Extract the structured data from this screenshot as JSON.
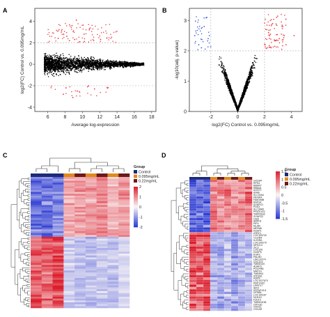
{
  "chart_data": [
    {
      "panel": "A",
      "type": "scatter",
      "title": "",
      "xlabel": "Average log-expression",
      "ylabel": "log2(FC) Control vs. 0.095mg/mL",
      "xlim": [
        4.5,
        18.5
      ],
      "ylim": [
        -4.4,
        5.2
      ],
      "xticks": [
        "6",
        "8",
        "10",
        "12",
        "14",
        "16",
        "18"
      ],
      "yticks": [
        "-4",
        "-2",
        "0",
        "2",
        "4"
      ],
      "threshold_lines_y": [
        -2,
        2
      ],
      "colors": {
        "not_significant": "#000000",
        "significant": "#e8363e"
      },
      "points": [
        {
          "x": 8.2,
          "y": 2.6,
          "sig": true
        },
        {
          "x": 9.1,
          "y": 2.3,
          "sig": true
        },
        {
          "x": 10.2,
          "y": 2.8,
          "sig": true
        },
        {
          "x": 7.6,
          "y": 3.1,
          "sig": true
        },
        {
          "x": 11.3,
          "y": 2.2,
          "sig": true
        },
        {
          "x": 8.8,
          "y": 3.6,
          "sig": true
        },
        {
          "x": 9.7,
          "y": 2.1,
          "sig": true
        },
        {
          "x": 10.8,
          "y": 3.2,
          "sig": true
        },
        {
          "x": 7.2,
          "y": 2.4,
          "sig": true
        },
        {
          "x": 8.5,
          "y": 2.2,
          "sig": true
        },
        {
          "x": 12.1,
          "y": 2.3,
          "sig": true
        },
        {
          "x": 9.3,
          "y": 4.1,
          "sig": true
        },
        {
          "x": 8.1,
          "y": -2.2,
          "sig": true
        },
        {
          "x": 9.4,
          "y": -2.5,
          "sig": true
        },
        {
          "x": 10.6,
          "y": -2.1,
          "sig": true
        },
        {
          "x": 7.8,
          "y": -2.8,
          "sig": true
        },
        {
          "x": 11.4,
          "y": -2.3,
          "sig": true
        },
        {
          "x": 8.9,
          "y": -3.1,
          "sig": true
        }
      ]
    },
    {
      "panel": "B",
      "type": "scatter",
      "title": "",
      "xlabel": "log2(FC) Control vs. 0.095mg/mL",
      "ylabel": "-log10(adj. p-value)",
      "xlim": [
        -3.6,
        4.8
      ],
      "ylim": [
        0,
        3.4
      ],
      "xticks": [
        "-2",
        "0",
        "2",
        "4"
      ],
      "yticks": [
        "0",
        "1",
        "2",
        "3"
      ],
      "threshold_lines_x": [
        -2,
        2
      ],
      "threshold_lines_y": [
        2
      ],
      "colors": {
        "not_significant": "#000000",
        "up": "#e8363e",
        "down": "#3b5bdb"
      },
      "points": [
        {
          "x": 2.3,
          "y": 2.6,
          "group": "up"
        },
        {
          "x": 2.6,
          "y": 2.9,
          "group": "up"
        },
        {
          "x": 3.1,
          "y": 2.4,
          "group": "up"
        },
        {
          "x": 2.9,
          "y": 3.1,
          "group": "up"
        },
        {
          "x": 3.6,
          "y": 2.2,
          "group": "up"
        },
        {
          "x": 4.2,
          "y": 2.5,
          "group": "up"
        },
        {
          "x": 2.2,
          "y": 2.1,
          "group": "up"
        },
        {
          "x": 3.3,
          "y": 2.8,
          "group": "up"
        },
        {
          "x": -2.2,
          "y": 2.4,
          "group": "down"
        },
        {
          "x": -2.5,
          "y": 2.8,
          "group": "down"
        },
        {
          "x": -2.9,
          "y": 2.2,
          "group": "down"
        },
        {
          "x": -2.3,
          "y": 3.1,
          "group": "down"
        },
        {
          "x": -3.2,
          "y": 2.5,
          "group": "down"
        },
        {
          "x": -2.7,
          "y": 2.1,
          "group": "down"
        }
      ]
    },
    {
      "panel": "C",
      "type": "heatmap",
      "title": "",
      "legend_title": "Group",
      "groups": [
        {
          "name": "Control",
          "color": "#1c2a7a"
        },
        {
          "name": "0.095mg/mL",
          "color": "#e08a1e"
        },
        {
          "name": "0.22mg/mL",
          "color": "#6b1a1a"
        }
      ],
      "column_groups": [
        "Control",
        "Control",
        "Control",
        "0.095mg/mL",
        "0.22mg/mL",
        "0.095mg/mL",
        "0.22mg/mL",
        "0.095mg/mL",
        "0.22mg/mL"
      ],
      "colorbar_ticks": [
        "2",
        "1",
        "0",
        "-1",
        "-2"
      ],
      "value_range": [
        -2,
        2
      ],
      "blocks": [
        {
          "rows": 32,
          "values": [
            -1.5,
            -1.4,
            -1.3,
            0.8,
            1.0,
            0.9,
            1.1,
            0.7,
            1.0
          ]
        },
        {
          "rows": 38,
          "values": [
            1.6,
            1.5,
            1.7,
            -0.5,
            -0.6,
            -0.7,
            -0.5,
            -0.6,
            -0.4
          ]
        }
      ]
    },
    {
      "panel": "D",
      "type": "heatmap",
      "title": "",
      "legend_title": "Group",
      "groups": [
        {
          "name": "Control",
          "color": "#1c2a7a"
        },
        {
          "name": "0.095mg/mL",
          "color": "#e08a1e"
        },
        {
          "name": "0.22mg/mL",
          "color": "#6b1a1a"
        }
      ],
      "column_groups": [
        "Control",
        "Control",
        "Control",
        "0.095mg/mL",
        "0.22mg/mL",
        "0.095mg/mL",
        "0.22mg/mL",
        "0.095mg/mL",
        "0.22mg/mL"
      ],
      "colorbar_ticks": [
        "1.5",
        "1",
        "0.5",
        "0",
        "-0.5",
        "-1",
        "-1.5"
      ],
      "value_range": [
        -1.5,
        1.5
      ],
      "row_labels": [
        "GOLM4",
        "RPS4",
        "RBM47",
        "RBM41",
        "AGGT1",
        "AS48",
        "SLC30A4",
        "FBXW4",
        "FAM198B",
        "RAP2A",
        "SYNPO1",
        "PDK4",
        "SLC38A5",
        "PRICKLE2",
        "TMPRSS6",
        "SYNPO2",
        "OGN",
        "ARPH1",
        "PIP4",
        "NLAM",
        "NEFM8",
        "DUSP1",
        "ATRC1",
        "LOC105729",
        "C1orf64",
        "IL2ORA",
        "LOC100279",
        "NFE2L3",
        "ZIC3",
        "LOC105",
        "DUSP5",
        "EGR3",
        "PALMD",
        "LINC10274",
        "CDC2L5",
        "TMEM100",
        "AGAP3",
        "PDGFRB",
        "MAP1S",
        "TMEM44",
        "ATP2B1",
        "ASPN",
        "LOC1027670",
        "RAP1GA2",
        "LRRC17",
        "IER3",
        "KRTAP19-8",
        "UPSB6",
        "LOC105167",
        "NCEA3",
        "FZD10",
        "TMEM151B",
        "CRYGD",
        "CDH12",
        "CSCAR"
      ],
      "blocks": [
        {
          "rows": 22,
          "values": [
            -1.3,
            -1.2,
            -1.3,
            0.9,
            0.8,
            1.0,
            0.7,
            0.9,
            1.1
          ]
        },
        {
          "rows": 33,
          "values": [
            1.3,
            1.2,
            1.4,
            -0.6,
            -0.7,
            -0.5,
            -0.8,
            -0.6,
            -0.5
          ]
        }
      ]
    }
  ]
}
